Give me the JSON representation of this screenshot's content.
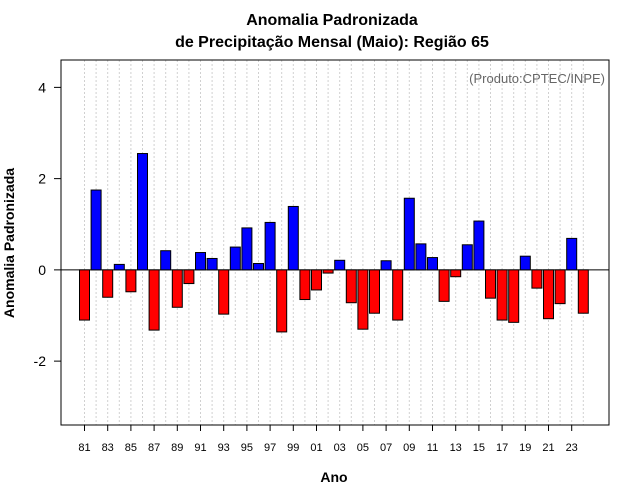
{
  "chart_data": {
    "type": "bar",
    "title_line1": "Anomalia Padronizada",
    "title_line2": "de Precipitação Mensal (Maio): Região 65",
    "xlabel": "Ano",
    "ylabel": "Anomalia Padronizada",
    "credit": "(Produto:CPTEC/INPE)",
    "ylim": [
      -3.4,
      4.6
    ],
    "yticks": [
      -2,
      0,
      2,
      4
    ],
    "ytick_labels": [
      "-2",
      "0",
      "2",
      "4"
    ],
    "grid": "vertical dotted",
    "positive_color": "#0000ff",
    "negative_color": "#ff0000",
    "categories": [
      "1981",
      "1982",
      "1983",
      "1984",
      "1985",
      "1986",
      "1987",
      "1988",
      "1989",
      "1990",
      "1991",
      "1992",
      "1993",
      "1994",
      "1995",
      "1996",
      "1997",
      "1998",
      "1999",
      "2000",
      "2001",
      "2002",
      "2003",
      "2004",
      "2005",
      "2006",
      "2007",
      "2008",
      "2009",
      "2010",
      "2011",
      "2012",
      "2013",
      "2014",
      "2015",
      "2016",
      "2017",
      "2018",
      "2019",
      "2020",
      "2021",
      "2022",
      "2023",
      "2024"
    ],
    "xtick_labels": [
      "81",
      "83",
      "85",
      "87",
      "89",
      "91",
      "93",
      "95",
      "97",
      "99",
      "01",
      "03",
      "05",
      "07",
      "09",
      "11",
      "13",
      "15",
      "17",
      "19",
      "21",
      "23"
    ],
    "values": [
      -1.1,
      1.75,
      -0.6,
      0.12,
      -0.48,
      2.55,
      -1.32,
      0.42,
      -0.82,
      -0.3,
      0.38,
      0.25,
      -0.97,
      0.5,
      0.92,
      0.14,
      1.04,
      -1.36,
      1.39,
      -0.65,
      -0.44,
      -0.07,
      0.21,
      -0.72,
      -1.3,
      -0.95,
      0.2,
      -1.1,
      1.57,
      0.57,
      0.27,
      -0.69,
      -0.15,
      0.55,
      1.07,
      -0.62,
      -1.1,
      -1.15,
      0.3,
      -0.4,
      -1.07,
      -0.74,
      0.69,
      -0.95
    ]
  }
}
